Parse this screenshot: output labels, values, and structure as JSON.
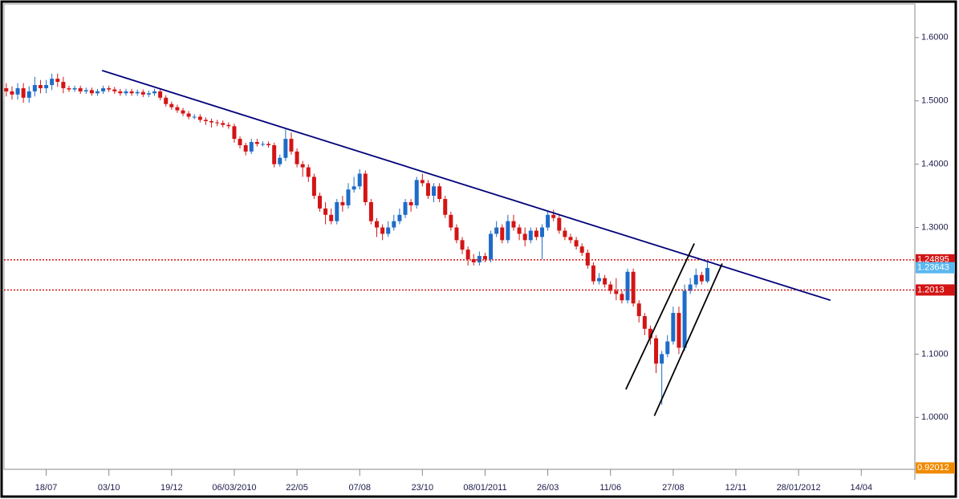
{
  "chart_data": {
    "type": "candlestick",
    "up_color": "#1e6cc8",
    "down_color": "#d31515",
    "open": [
      1.52,
      1.515,
      1.51,
      1.52,
      1.505,
      1.515,
      1.525,
      1.52,
      1.525,
      1.535,
      1.53,
      1.52,
      1.518,
      1.52,
      1.515,
      1.517,
      1.512,
      1.515,
      1.52,
      1.518,
      1.515,
      1.512,
      1.515,
      1.512,
      1.514,
      1.51,
      1.512,
      1.515,
      1.505,
      1.495,
      1.49,
      1.485,
      1.48,
      1.475,
      1.475,
      1.47,
      1.468,
      1.466,
      1.465,
      1.462,
      1.46,
      1.44,
      1.43,
      1.42,
      1.435,
      1.432,
      1.432,
      1.43,
      1.4,
      1.41,
      1.44,
      1.42,
      1.4,
      1.395,
      1.38,
      1.35,
      1.33,
      1.32,
      1.31,
      1.34,
      1.335,
      1.36,
      1.365,
      1.385,
      1.34,
      1.31,
      1.3,
      1.29,
      1.3,
      1.31,
      1.32,
      1.34,
      1.335,
      1.375,
      1.37,
      1.35,
      1.365,
      1.345,
      1.32,
      1.3,
      1.28,
      1.265,
      1.25,
      1.245,
      1.255,
      1.25,
      1.29,
      1.3,
      1.28,
      1.31,
      1.3,
      1.29,
      1.28,
      1.295,
      1.285,
      1.3,
      1.32,
      1.315,
      1.295,
      1.285,
      1.28,
      1.27,
      1.26,
      1.24,
      1.215,
      1.22,
      1.21,
      1.2,
      1.195,
      1.185,
      1.23,
      1.18,
      1.16,
      1.14,
      1.125,
      1.085,
      1.1,
      1.12,
      1.165,
      1.11,
      1.2,
      1.21,
      1.225,
      1.215
    ],
    "high": [
      1.528,
      1.523,
      1.528,
      1.528,
      1.523,
      1.538,
      1.533,
      1.533,
      1.543,
      1.543,
      1.538,
      1.524,
      1.524,
      1.524,
      1.521,
      1.521,
      1.519,
      1.524,
      1.524,
      1.522,
      1.519,
      1.519,
      1.519,
      1.518,
      1.518,
      1.516,
      1.519,
      1.519,
      1.509,
      1.499,
      1.494,
      1.489,
      1.484,
      1.479,
      1.479,
      1.474,
      1.472,
      1.47,
      1.469,
      1.466,
      1.464,
      1.444,
      1.434,
      1.44,
      1.44,
      1.436,
      1.436,
      1.434,
      1.415,
      1.455,
      1.45,
      1.425,
      1.405,
      1.4,
      1.385,
      1.355,
      1.34,
      1.33,
      1.345,
      1.35,
      1.37,
      1.38,
      1.392,
      1.39,
      1.345,
      1.315,
      1.305,
      1.31,
      1.32,
      1.33,
      1.345,
      1.345,
      1.38,
      1.385,
      1.375,
      1.37,
      1.37,
      1.35,
      1.325,
      1.305,
      1.285,
      1.27,
      1.258,
      1.262,
      1.26,
      1.295,
      1.31,
      1.305,
      1.32,
      1.32,
      1.305,
      1.3,
      1.3,
      1.3,
      1.305,
      1.325,
      1.328,
      1.32,
      1.3,
      1.29,
      1.285,
      1.275,
      1.265,
      1.245,
      1.228,
      1.225,
      1.215,
      1.22,
      1.2,
      1.235,
      1.235,
      1.185,
      1.165,
      1.145,
      1.13,
      1.105,
      1.13,
      1.175,
      1.175,
      1.21,
      1.22,
      1.235,
      1.23,
      1.245
    ],
    "low": [
      1.507,
      1.502,
      1.502,
      1.497,
      1.497,
      1.507,
      1.512,
      1.512,
      1.517,
      1.522,
      1.512,
      1.514,
      1.514,
      1.511,
      1.511,
      1.508,
      1.508,
      1.511,
      1.514,
      1.511,
      1.508,
      1.508,
      1.508,
      1.508,
      1.506,
      1.506,
      1.508,
      1.501,
      1.491,
      1.486,
      1.481,
      1.476,
      1.471,
      1.471,
      1.466,
      1.462,
      1.458,
      1.46,
      1.458,
      1.456,
      1.434,
      1.425,
      1.414,
      1.416,
      1.428,
      1.428,
      1.426,
      1.395,
      1.396,
      1.405,
      1.415,
      1.395,
      1.38,
      1.372,
      1.345,
      1.325,
      1.305,
      1.305,
      1.305,
      1.325,
      1.33,
      1.355,
      1.36,
      1.335,
      1.305,
      1.285,
      1.28,
      1.285,
      1.295,
      1.305,
      1.315,
      1.325,
      1.33,
      1.365,
      1.345,
      1.34,
      1.34,
      1.315,
      1.295,
      1.275,
      1.258,
      1.24,
      1.24,
      1.24,
      1.245,
      1.245,
      1.285,
      1.275,
      1.275,
      1.295,
      1.28,
      1.27,
      1.275,
      1.28,
      1.25,
      1.295,
      1.31,
      1.29,
      1.28,
      1.275,
      1.265,
      1.255,
      1.235,
      1.21,
      1.21,
      1.205,
      1.195,
      1.185,
      1.18,
      1.18,
      1.175,
      1.15,
      1.13,
      1.115,
      1.07,
      1.02,
      1.095,
      1.115,
      1.1,
      1.105,
      1.195,
      1.205,
      1.21,
      1.212
    ],
    "close": [
      1.515,
      1.51,
      1.52,
      1.505,
      1.515,
      1.525,
      1.52,
      1.525,
      1.535,
      1.53,
      1.52,
      1.518,
      1.52,
      1.515,
      1.517,
      1.512,
      1.515,
      1.52,
      1.518,
      1.515,
      1.512,
      1.515,
      1.512,
      1.514,
      1.51,
      1.512,
      1.515,
      1.505,
      1.495,
      1.49,
      1.485,
      1.48,
      1.475,
      1.475,
      1.47,
      1.468,
      1.466,
      1.465,
      1.462,
      1.46,
      1.44,
      1.43,
      1.42,
      1.435,
      1.432,
      1.432,
      1.43,
      1.4,
      1.41,
      1.44,
      1.42,
      1.4,
      1.395,
      1.38,
      1.35,
      1.33,
      1.32,
      1.31,
      1.34,
      1.335,
      1.36,
      1.365,
      1.385,
      1.34,
      1.31,
      1.3,
      1.29,
      1.3,
      1.31,
      1.32,
      1.34,
      1.335,
      1.375,
      1.37,
      1.35,
      1.365,
      1.345,
      1.32,
      1.3,
      1.28,
      1.265,
      1.25,
      1.245,
      1.255,
      1.25,
      1.29,
      1.3,
      1.28,
      1.31,
      1.3,
      1.29,
      1.28,
      1.295,
      1.285,
      1.3,
      1.32,
      1.315,
      1.295,
      1.285,
      1.28,
      1.27,
      1.26,
      1.24,
      1.215,
      1.22,
      1.21,
      1.2,
      1.195,
      1.185,
      1.23,
      1.18,
      1.16,
      1.14,
      1.125,
      1.085,
      1.1,
      1.12,
      1.165,
      1.11,
      1.2,
      1.21,
      1.225,
      1.215,
      1.236
    ],
    "xlim": [
      -0.4,
      159.4
    ],
    "xticks": [
      {
        "value": 7,
        "label": "18/07"
      },
      {
        "value": 18,
        "label": "03/10"
      },
      {
        "value": 29,
        "label": "19/12"
      },
      {
        "value": 40,
        "label": "06/03/2010"
      },
      {
        "value": 51,
        "label": "22/05"
      },
      {
        "value": 62,
        "label": "07/08"
      },
      {
        "value": 73,
        "label": "23/10"
      },
      {
        "value": 84,
        "label": "08/01/2011"
      },
      {
        "value": 95,
        "label": "26/03"
      },
      {
        "value": 106,
        "label": "11/06"
      },
      {
        "value": 117,
        "label": "27/08"
      },
      {
        "value": 128,
        "label": "12/11"
      },
      {
        "value": 139,
        "label": "28/01/2012"
      },
      {
        "value": 150,
        "label": "14/04"
      }
    ],
    "ylim": [
      0.918,
      1.653
    ],
    "yticks": [
      {
        "value": 1.0,
        "label": "1.0000"
      },
      {
        "value": 1.1,
        "label": "1.1000"
      },
      {
        "value": 1.2,
        "label": "1.2000"
      },
      {
        "value": 1.3,
        "label": "1.3000"
      },
      {
        "value": 1.4,
        "label": "1.4000"
      },
      {
        "value": 1.5,
        "label": "1.5000"
      },
      {
        "value": 1.6,
        "label": "1.6000"
      }
    ],
    "price_markers": [
      {
        "value": 1.24895,
        "color": "#d31515",
        "dotted": true
      },
      {
        "value": 1.23643,
        "color": "#5bb8f0",
        "dotted": false
      },
      {
        "value": 1.2013,
        "color": "#d31515",
        "dotted": true
      },
      {
        "value": 0.92012,
        "color": "#f08a00",
        "dotted": false
      }
    ],
    "lines": [
      {
        "from": [
          16.8,
          1.548
        ],
        "to": [
          144.6,
          1.185
        ],
        "color": "#00007a"
      },
      {
        "from": [
          108.7,
          1.0443
        ],
        "to": [
          120.7,
          1.2747
        ],
        "color": "#000000"
      },
      {
        "from": [
          113.7,
          1.0025
        ],
        "to": [
          125.6,
          1.243
        ],
        "color": "#000000"
      }
    ]
  }
}
